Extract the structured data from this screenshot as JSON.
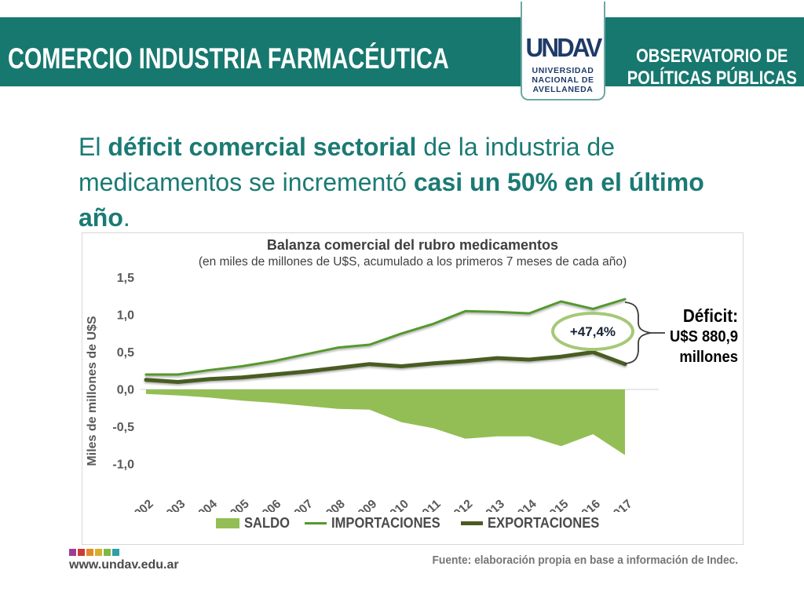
{
  "header": {
    "title": "COMERCIO INDUSTRIA FARMACÉUTICA",
    "observatory_line1": "OBSERVATORIO DE",
    "observatory_line2": "POLÍTICAS PÚBLICAS",
    "logo": {
      "wordmark": "UNDAV",
      "line1": "UNIVERSIDAD",
      "line2": "NACIONAL DE",
      "line3": "AVELLANEDA"
    }
  },
  "headline": {
    "segments": [
      {
        "text": "El ",
        "bold": false
      },
      {
        "text": "déficit comercial sectorial",
        "bold": true
      },
      {
        "text": " de la industria de medicamentos se incrementó ",
        "bold": false
      },
      {
        "text": "casi un 50% en el último año",
        "bold": true
      },
      {
        "text": ".",
        "bold": false
      }
    ]
  },
  "chart_data": {
    "type": "area+line",
    "title": "Balanza comercial del rubro medicamentos",
    "subtitle": "(en miles de millones de U$S, acumulado a los primeros 7 meses de cada año)",
    "ylabel": "Miles de millones de U$S",
    "xlabel": "",
    "ylim": [
      -1.0,
      1.5
    ],
    "grid": "zero-line-only",
    "legend_position": "bottom",
    "ytick_labels": [
      "1,5",
      "1,0",
      "0,5",
      "0,0",
      "-0,5",
      "-1,0"
    ],
    "ytick_values": [
      1.5,
      1.0,
      0.5,
      0.0,
      -0.5,
      -1.0
    ],
    "categories": [
      "2002",
      "2003",
      "2004",
      "2005",
      "2006",
      "2007",
      "2008",
      "2009",
      "2010",
      "2011",
      "2012",
      "2013",
      "2014",
      "2015",
      "2016",
      "2017"
    ],
    "series": [
      {
        "name": "SALDO",
        "type": "area",
        "color": "#93BE55",
        "values": [
          -0.06,
          -0.08,
          -0.11,
          -0.15,
          -0.18,
          -0.22,
          -0.26,
          -0.27,
          -0.44,
          -0.52,
          -0.66,
          -0.63,
          -0.63,
          -0.76,
          -0.6,
          -0.88
        ]
      },
      {
        "name": "IMPORTACIONES",
        "type": "line",
        "color": "#55982E",
        "stroke_width": 3,
        "values": [
          0.2,
          0.2,
          0.26,
          0.31,
          0.38,
          0.47,
          0.56,
          0.6,
          0.75,
          0.88,
          1.05,
          1.04,
          1.02,
          1.18,
          1.08,
          1.21
        ]
      },
      {
        "name": "EXPORTACIONES",
        "type": "line",
        "color": "#4A5B22",
        "stroke_width": 5,
        "values": [
          0.13,
          0.1,
          0.14,
          0.16,
          0.2,
          0.24,
          0.29,
          0.34,
          0.31,
          0.35,
          0.38,
          0.42,
          0.4,
          0.44,
          0.5,
          0.34
        ]
      }
    ],
    "annotation": {
      "text": "+47,4%",
      "ellipse_color": "#A6C878"
    },
    "callout": {
      "line1": "Déficit:",
      "line2": "U$S 880,9",
      "line3": "millones"
    },
    "axis_text_color": "#595959"
  },
  "footer": {
    "website": "www.undav.edu.ar",
    "dot_colors": [
      "#A03C96",
      "#CC3A3A",
      "#E2892B",
      "#D7B02B",
      "#7FB943",
      "#2E9FA7"
    ],
    "source": "Fuente: elaboración propia en base a información de Indec."
  },
  "colors": {
    "header_bar": "#17786F",
    "headline_text": "#1B7A74",
    "logo_navy": "#1E3A68"
  }
}
